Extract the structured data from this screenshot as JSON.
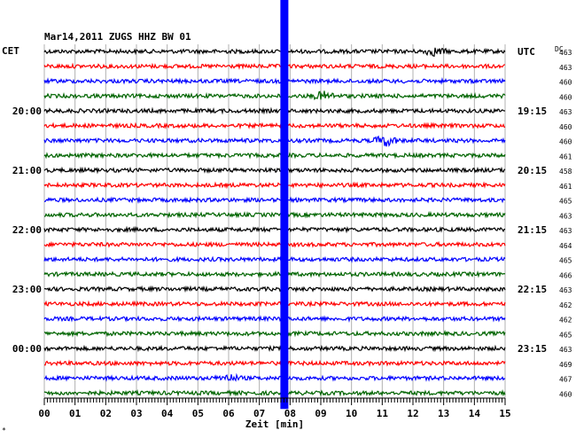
{
  "chart_data": {
    "type": "line",
    "title": "Mar14,2011   ZUGS HHZ BW 01",
    "left_zone_label": "CET",
    "right_zone_label": "UTC",
    "dc_header": "DC",
    "xlabel": "Zeit [min]",
    "xlim": [
      0,
      15
    ],
    "x_ticks": [
      "00",
      "01",
      "02",
      "03",
      "04",
      "05",
      "06",
      "07",
      "08",
      "09",
      "10",
      "11",
      "12",
      "13",
      "14",
      "15"
    ],
    "left_time_labels": [
      {
        "trace": 4,
        "label": "20:00"
      },
      {
        "trace": 8,
        "label": "21:00"
      },
      {
        "trace": 12,
        "label": "22:00"
      },
      {
        "trace": 16,
        "label": "23:00"
      },
      {
        "trace": 20,
        "label": "00:00"
      }
    ],
    "right_time_labels": [
      {
        "trace": 0,
        "label": "UTC"
      },
      {
        "trace": 4,
        "label": "19:15"
      },
      {
        "trace": 8,
        "label": "20:15"
      },
      {
        "trace": 12,
        "label": "21:15"
      },
      {
        "trace": 16,
        "label": "22:15"
      },
      {
        "trace": 20,
        "label": "23:15"
      }
    ],
    "dc_values": [
      "463",
      "463",
      "460",
      "460",
      "463",
      "460",
      "460",
      "461",
      "458",
      "461",
      "465",
      "463",
      "463",
      "464",
      "465",
      "466",
      "463",
      "462",
      "462",
      "465",
      "463",
      "469",
      "467",
      "460"
    ],
    "trace_colors": [
      "#000000",
      "#ff0000",
      "#0000ff",
      "#006400"
    ],
    "marker": {
      "x": 7.8,
      "color": "#0000ff"
    },
    "events": [
      {
        "trace": 0,
        "x": 12.7,
        "amp": 1.6
      },
      {
        "trace": 3,
        "x": 9.1,
        "amp": 1.8
      },
      {
        "trace": 6,
        "x": 11.1,
        "amp": 2.4
      },
      {
        "trace": 22,
        "x": 6.0,
        "amp": 1.4
      }
    ],
    "grid": true,
    "footer_mark": "*"
  }
}
